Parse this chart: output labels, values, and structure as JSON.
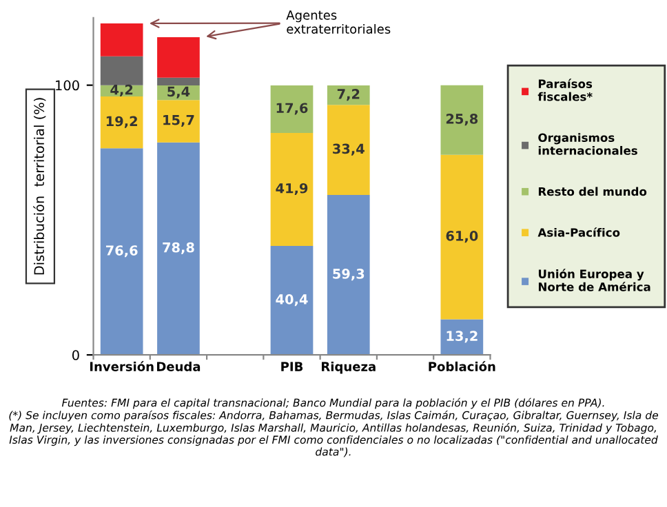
{
  "chart_data": {
    "type": "bar",
    "stacked": true,
    "ylabel": "Distribución  territorial (%)",
    "categories": [
      "Inversión",
      "Deuda",
      null,
      "PIB",
      "Riqueza",
      null,
      "Población"
    ],
    "series": [
      {
        "name": "Unión Europea y Norte de América",
        "color": "#6f93c8",
        "values": [
          76.6,
          78.8,
          null,
          40.4,
          59.3,
          null,
          13.2
        ],
        "value_labels": [
          "76,6",
          "78,8",
          null,
          "40,4",
          "59,3",
          null,
          "13,2"
        ]
      },
      {
        "name": "Asia-Pacífico",
        "color": "#f5c92c",
        "values": [
          19.2,
          15.7,
          null,
          41.9,
          33.4,
          null,
          61.0
        ],
        "value_labels": [
          "19,2",
          "15,7",
          null,
          "41,9",
          "33,4",
          null,
          "61,0"
        ]
      },
      {
        "name": "Resto del mundo",
        "color": "#a4c26a",
        "values": [
          4.2,
          5.4,
          null,
          17.6,
          7.2,
          null,
          25.8
        ],
        "value_labels": [
          "4,2",
          "5,4",
          null,
          "17,6",
          "7,2",
          null,
          "25,8"
        ]
      },
      {
        "name": "Organismos internacionales",
        "color": "#6b6b6b",
        "values": [
          10.7,
          2.9,
          null,
          null,
          null,
          null,
          null
        ]
      },
      {
        "name": "Paraísos fiscales*",
        "color": "#ee1c24",
        "values": [
          12.2,
          15.0,
          null,
          null,
          null,
          null,
          null
        ]
      }
    ],
    "ylim": [
      0,
      125
    ],
    "yticks": [
      0,
      100
    ],
    "grid": false,
    "legend": "right",
    "annotations": [
      "Agentes\nextraterritoriales",
      "Fuentes: FMI para el capital transnacional; Banco Mundial para la población y el PIB (dólares en PPA).\n(*) Se incluyen como paraísos fiscales: Andorra, Bahamas, Bermudas, Islas Caimán, Curaçao, Gibraltar, Guernsey, Isla de Man, Jersey, Liechtenstein, Luxemburgo, Islas Marshall, Mauricio, Antillas holandesas, Reunión, Suiza, Trinidad y Tobago, Islas Virgin, y las inversiones consignadas por el FMI como confidenciales o no localizadas (\"confidential and unallocated data\")."
    ]
  }
}
